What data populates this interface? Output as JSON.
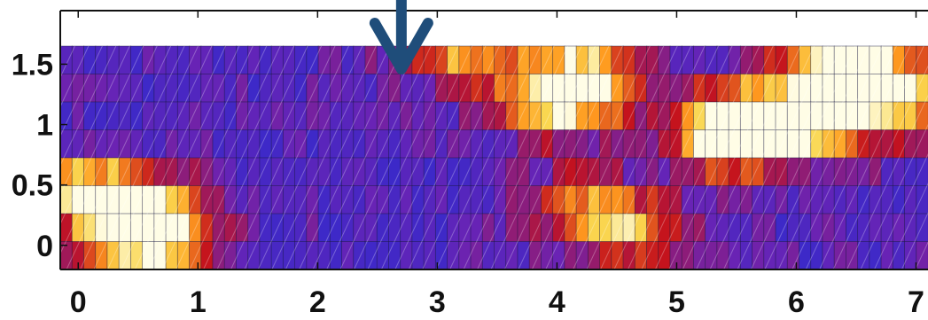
{
  "chart_data": {
    "type": "heatmap",
    "title": "",
    "xlabel": "",
    "ylabel": "",
    "xlim": [
      -0.15,
      7.1
    ],
    "ylim": [
      -0.2,
      1.65
    ],
    "x_ticks": [
      {
        "value": 0,
        "label": "0"
      },
      {
        "value": 1,
        "label": "1"
      },
      {
        "value": 2,
        "label": "2"
      },
      {
        "value": 3,
        "label": "3"
      },
      {
        "value": 4,
        "label": "4"
      },
      {
        "value": 5,
        "label": "5"
      },
      {
        "value": 6,
        "label": "6"
      },
      {
        "value": 7,
        "label": "7"
      }
    ],
    "y_ticks": [
      {
        "value": 0,
        "label": "0"
      },
      {
        "value": 0.5,
        "label": "0.5"
      },
      {
        "value": 1,
        "label": "1"
      },
      {
        "value": 1.5,
        "label": "1.5"
      }
    ],
    "grid": false,
    "colormap": "blue-purple-red-yellow-white",
    "colors": {
      "low": "#1e2dd6",
      "mid": "#6a23b4",
      "high_mid": "#c4121d",
      "high": "#ff9a1f",
      "peak": "#fffde6",
      "arrow": "#1f4d7a",
      "axes": "#111111"
    },
    "annotation": {
      "type": "arrow",
      "direction": "down",
      "x": 2.7
    },
    "hotspots": [
      {
        "x": 0.6,
        "y": 0.05,
        "intensity": 1.0
      },
      {
        "x": 0.45,
        "y": 0.4,
        "intensity": 0.6
      },
      {
        "x": -0.1,
        "y": 0.45,
        "intensity": 0.6
      },
      {
        "x": 4.2,
        "y": 1.4,
        "intensity": 0.75
      },
      {
        "x": 4.0,
        "y": 1.15,
        "intensity": 0.6
      },
      {
        "x": 3.2,
        "y": 1.6,
        "intensity": 0.55
      },
      {
        "x": 5.6,
        "y": 1.1,
        "intensity": 0.8
      },
      {
        "x": 5.5,
        "y": 0.85,
        "intensity": 0.75
      },
      {
        "x": 6.4,
        "y": 1.45,
        "intensity": 0.9
      },
      {
        "x": 6.8,
        "y": 1.25,
        "intensity": 0.7
      },
      {
        "x": 4.6,
        "y": 0.1,
        "intensity": 0.5
      },
      {
        "x": 4.2,
        "y": 0.35,
        "intensity": 0.45
      },
      {
        "x": 6.3,
        "y": 0.95,
        "intensity": 0.5
      }
    ]
  }
}
